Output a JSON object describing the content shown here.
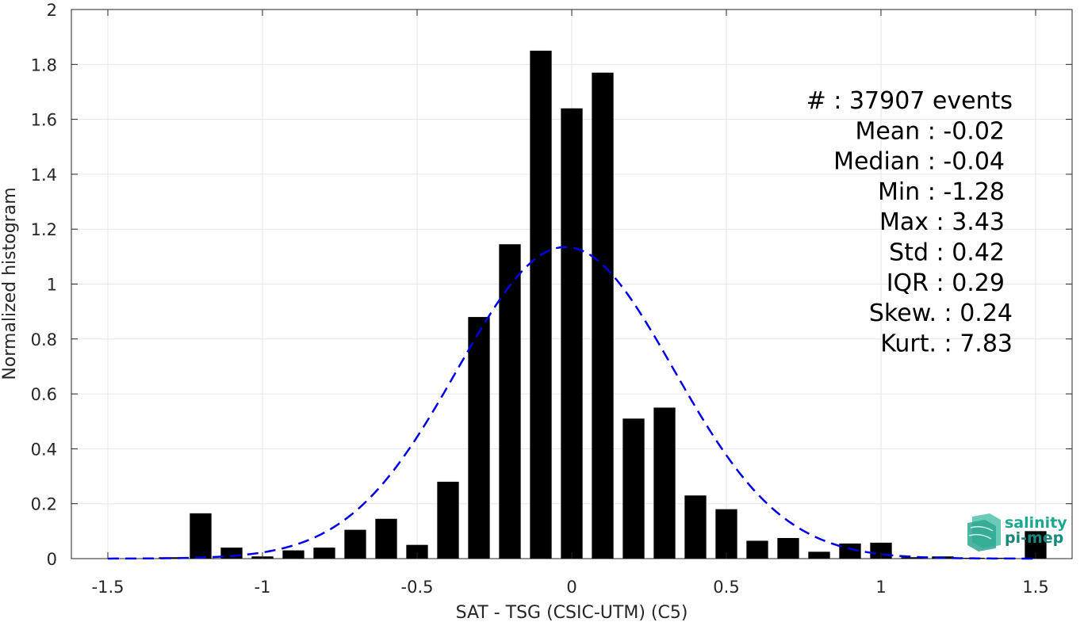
{
  "chart_data": {
    "type": "bar",
    "title": "",
    "xlabel": "SAT - TSG (CSIC-UTM) (C5)",
    "ylabel": "Normalized histogram",
    "xlim": [
      -1.5,
      1.5
    ],
    "ylim": [
      0,
      2
    ],
    "grid": true,
    "x_ticks": [
      -1.5,
      -1,
      -0.5,
      0,
      0.5,
      1,
      1.5
    ],
    "x_tick_labels": [
      "-1.5",
      "-1",
      "-0.5",
      "0",
      "0.5",
      "1",
      "1.5"
    ],
    "y_ticks": [
      0,
      0.2,
      0.4,
      0.6,
      0.8,
      1,
      1.2,
      1.4,
      1.6,
      1.8,
      2
    ],
    "y_tick_labels": [
      "0",
      "0.2",
      "0.4",
      "0.6",
      "0.8",
      "1",
      "1.2",
      "1.4",
      "1.6",
      "1.8",
      "2"
    ],
    "bar_centers": [
      -1.4,
      -1.3,
      -1.2,
      -1.1,
      -1.0,
      -0.9,
      -0.8,
      -0.7,
      -0.6,
      -0.5,
      -0.4,
      -0.3,
      -0.2,
      -0.1,
      0.0,
      0.1,
      0.2,
      0.3,
      0.4,
      0.5,
      0.6,
      0.7,
      0.8,
      0.9,
      1.0,
      1.1,
      1.2,
      1.3,
      1.4,
      1.5
    ],
    "bar_width": 0.07,
    "values": [
      0.0,
      0.005,
      0.165,
      0.04,
      0.008,
      0.03,
      0.04,
      0.105,
      0.145,
      0.05,
      0.28,
      0.88,
      1.145,
      1.85,
      1.64,
      1.77,
      0.51,
      0.55,
      0.23,
      0.18,
      0.065,
      0.075,
      0.025,
      0.055,
      0.058,
      0.005,
      0.008,
      0.003,
      0.003,
      0.1
    ],
    "bar_color": "#000000",
    "fit_curve": {
      "type": "normal",
      "style": "dashed",
      "color": "#0000e6",
      "mean": -0.02,
      "std": 0.35,
      "peak": 1.135
    },
    "stats": [
      {
        "label": "#  : 37907 events"
      },
      {
        "label": "Mean : -0.02"
      },
      {
        "label": "Median : -0.04"
      },
      {
        "label": "Min : -1.28"
      },
      {
        "label": "Max : 3.43"
      },
      {
        "label": "Std : 0.42"
      },
      {
        "label": "IQR : 0.29"
      },
      {
        "label": "Skew. : 0.24"
      },
      {
        "label": "Kurt. : 7.83"
      }
    ]
  },
  "logo": {
    "line1": "salinity",
    "line2": "pi-mep",
    "color1": "#1aa891",
    "color2": "#16877a"
  }
}
